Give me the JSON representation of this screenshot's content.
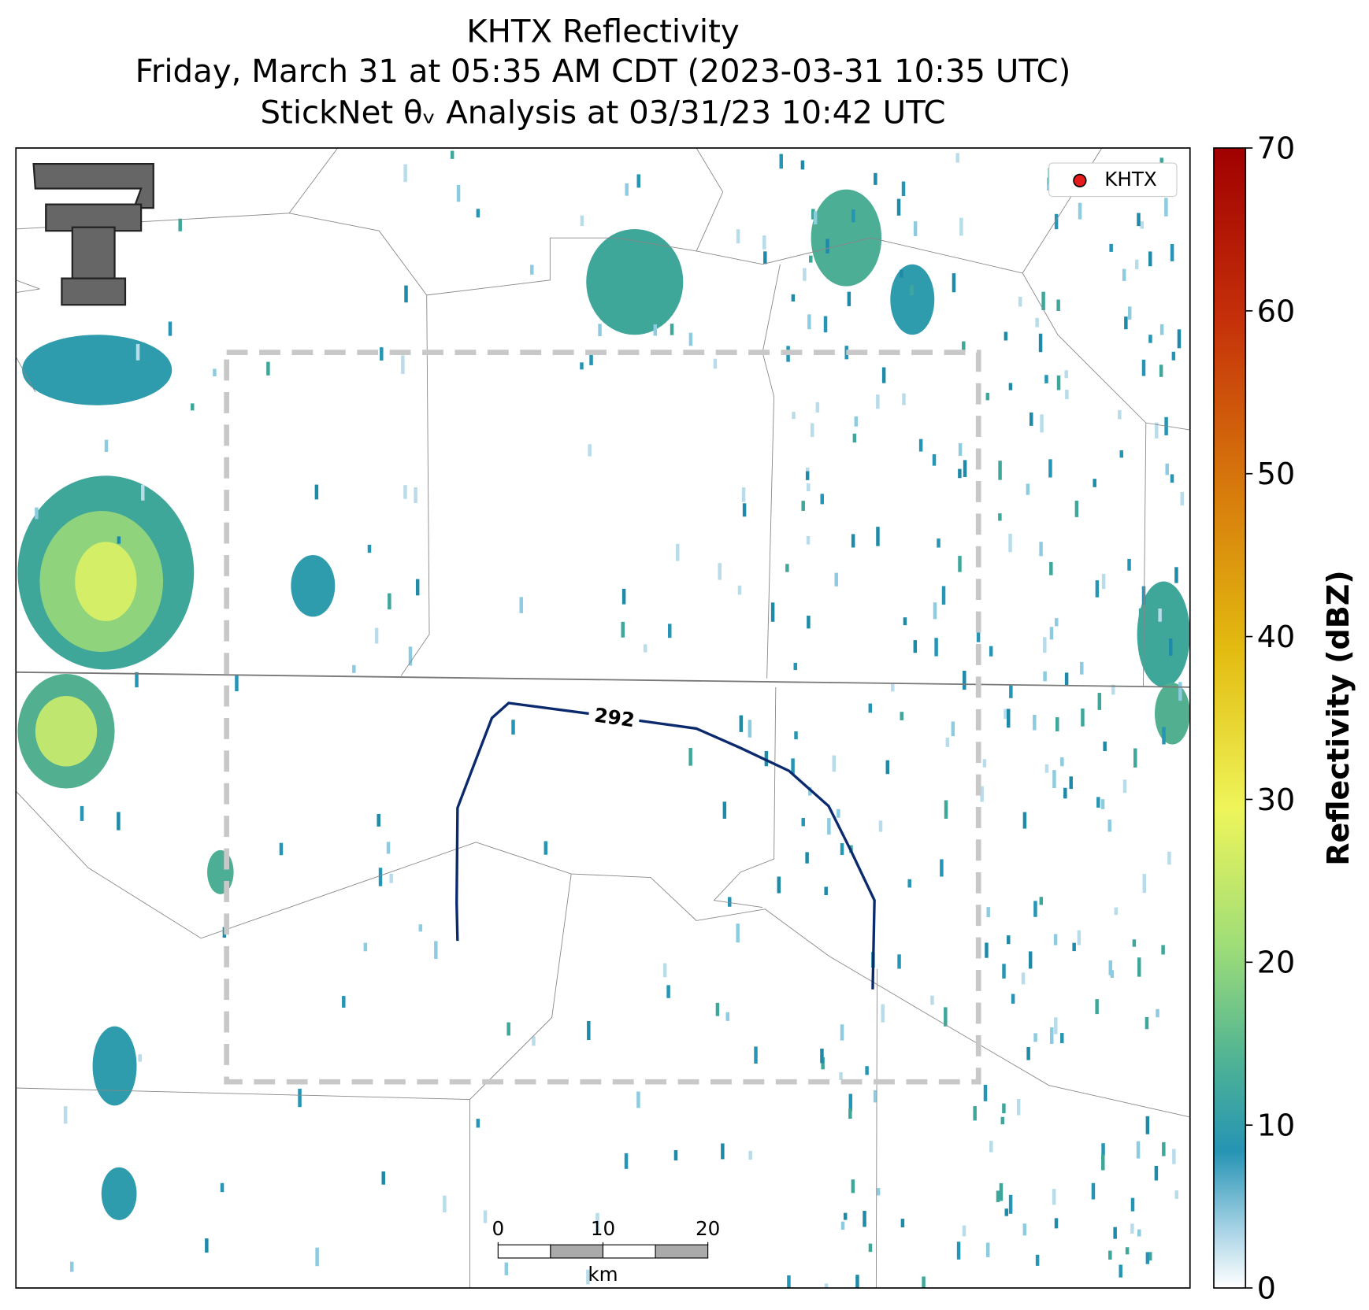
{
  "header": {
    "title_lines": [
      "KHTX Reflectivity",
      "Friday, March 31 at 05:35 AM CDT (2023-03-31 10:35 UTC)",
      "StickNet θᵥ Analysis at 03/31/23 10:42 UTC"
    ]
  },
  "map": {
    "legend": [
      {
        "label": "KHTX",
        "color": "#e41a1c"
      }
    ],
    "contour": {
      "level": 292,
      "color": "#0b2a6e"
    },
    "scalebar": {
      "ticks": [
        0,
        10,
        20
      ],
      "unit": "km"
    }
  },
  "colorbar": {
    "label": "Reflectivity (dBZ)",
    "lim": [
      0,
      70
    ],
    "ticks": [
      0,
      10,
      20,
      30,
      40,
      50,
      60,
      70
    ]
  }
}
